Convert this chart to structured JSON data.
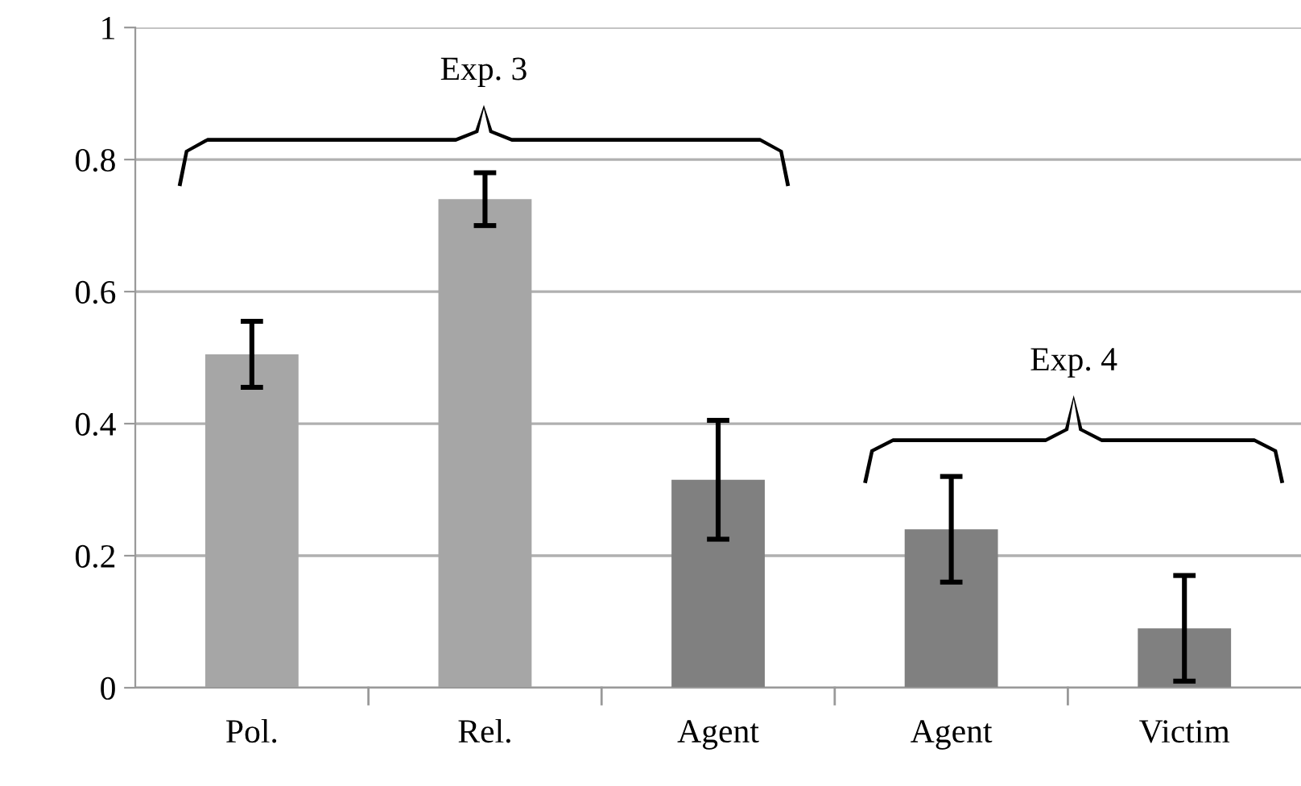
{
  "chart_data": {
    "type": "bar",
    "categories": [
      "Pol.",
      "Rel.",
      "Agent",
      "Agent",
      "Victim"
    ],
    "values": [
      0.505,
      0.74,
      0.315,
      0.24,
      0.09
    ],
    "errors": [
      0.05,
      0.04,
      0.09,
      0.08,
      0.08
    ],
    "colors": [
      "#a6a6a6",
      "#a6a6a6",
      "#808080",
      "#808080",
      "#808080"
    ],
    "ylim": [
      0,
      1
    ],
    "yticks": [
      0,
      0.2,
      0.4,
      0.6,
      0.8,
      1
    ],
    "grid": "y",
    "annotations": [
      "Exp. 3",
      "Exp. 4"
    ]
  }
}
